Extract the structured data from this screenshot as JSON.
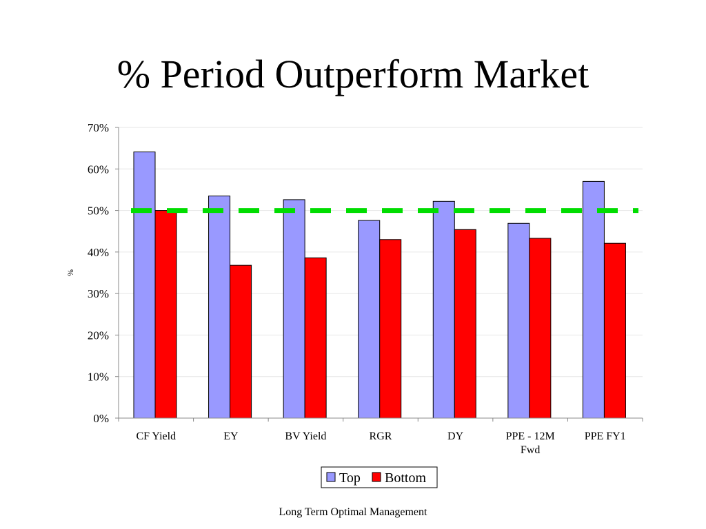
{
  "slide": {
    "title": "% Period Outperform Market",
    "footer": "Long Term Optimal Management"
  },
  "chart_data": {
    "type": "bar",
    "title": "",
    "xlabel": "",
    "ylabel": "%",
    "ylim": [
      0,
      0.7
    ],
    "yticks": [
      "0%",
      "10%",
      "20%",
      "30%",
      "40%",
      "50%",
      "60%",
      "70%"
    ],
    "ytick_values": [
      0,
      0.1,
      0.2,
      0.3,
      0.4,
      0.5,
      0.6,
      0.7
    ],
    "categories": [
      "CF Yield",
      "EY",
      "BV Yield",
      "RGR",
      "DY",
      "PPE - 12M Fwd",
      "PPE FY1"
    ],
    "category_lines": [
      [
        "CF Yield"
      ],
      [
        "EY"
      ],
      [
        "BV Yield"
      ],
      [
        "RGR"
      ],
      [
        "DY"
      ],
      [
        "PPE - 12M",
        "Fwd"
      ],
      [
        "PPE FY1"
      ]
    ],
    "series": [
      {
        "name": "Top",
        "color": "#9999ff",
        "values": [
          0.641,
          0.535,
          0.526,
          0.476,
          0.522,
          0.469,
          0.57
        ]
      },
      {
        "name": "Bottom",
        "color": "#ff0000",
        "values": [
          0.5,
          0.368,
          0.386,
          0.43,
          0.454,
          0.433,
          0.421
        ]
      }
    ],
    "reference_line": {
      "value": 0.5,
      "color": "#00dd00",
      "style": "dashed"
    },
    "grid": true,
    "legend": "bottom-center"
  }
}
